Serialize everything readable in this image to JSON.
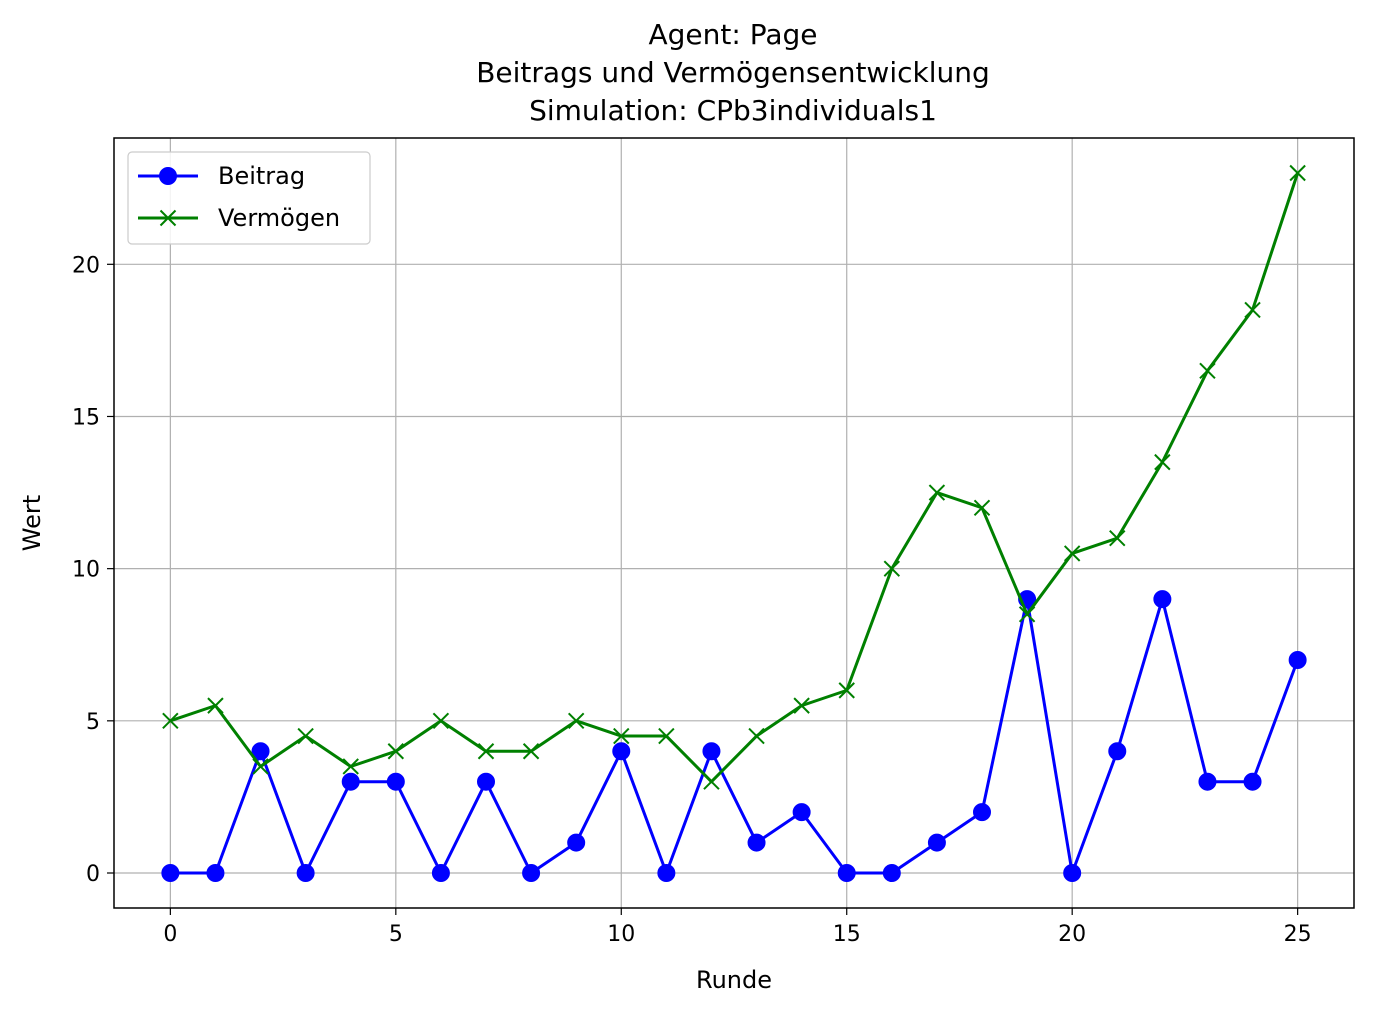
{
  "chart_data": {
    "type": "line",
    "title_lines": [
      "Agent: Page",
      "Beitrags und Vermögensentwicklung",
      "Simulation: CPb3individuals1"
    ],
    "xlabel": "Runde",
    "ylabel": "Wert",
    "xlim": [
      -1.25,
      26.25
    ],
    "ylim": [
      -1.15,
      24.15
    ],
    "x_ticks": [
      0,
      5,
      10,
      15,
      20,
      25
    ],
    "y_ticks": [
      0,
      5,
      10,
      15,
      20
    ],
    "grid": true,
    "legend_position": "top-left",
    "x": [
      0,
      1,
      2,
      3,
      4,
      5,
      6,
      7,
      8,
      9,
      10,
      11,
      12,
      13,
      14,
      15,
      16,
      17,
      18,
      19,
      20,
      21,
      22,
      23,
      24,
      25
    ],
    "series": [
      {
        "name": "Beitrag",
        "color": "#0000ff",
        "marker": "circle",
        "values": [
          0,
          0,
          4,
          0,
          3,
          3,
          0,
          3,
          0,
          1,
          4,
          0,
          4,
          1,
          2,
          0,
          0,
          1,
          2,
          9,
          0,
          4,
          9,
          3,
          3,
          7
        ]
      },
      {
        "name": "Vermögen",
        "color": "#008000",
        "marker": "x",
        "values": [
          5,
          5.5,
          3.5,
          4.5,
          3.5,
          4,
          5,
          4,
          4,
          5,
          4.5,
          4.5,
          3,
          4.5,
          5.5,
          6,
          10,
          12.5,
          12,
          8.5,
          10.5,
          11,
          13.5,
          16.5,
          18.5,
          23
        ]
      }
    ]
  }
}
